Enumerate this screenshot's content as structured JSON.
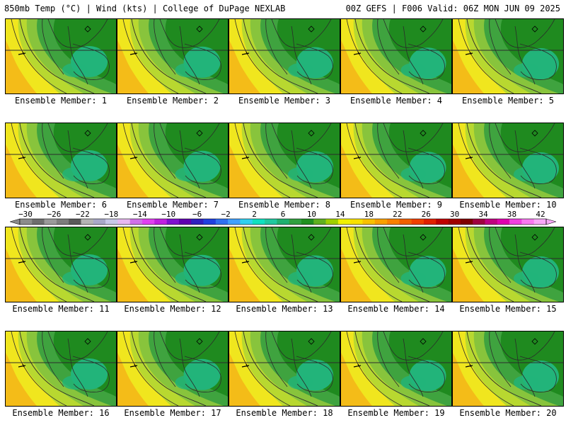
{
  "header": {
    "left": "850mb Temp (°C) | Wind (kts) | College of DuPage NEXLAB",
    "right": "00Z GEFS | F006 Valid: 06Z MON JUN 09 2025"
  },
  "caption_prefix": "Ensemble Member:",
  "members": [
    {
      "label": "Ensemble Member: 1"
    },
    {
      "label": "Ensemble Member: 2"
    },
    {
      "label": "Ensemble Member: 3"
    },
    {
      "label": "Ensemble Member: 4"
    },
    {
      "label": "Ensemble Member: 5"
    },
    {
      "label": "Ensemble Member: 6"
    },
    {
      "label": "Ensemble Member: 7"
    },
    {
      "label": "Ensemble Member: 8"
    },
    {
      "label": "Ensemble Member: 9"
    },
    {
      "label": "Ensemble Member: 10"
    },
    {
      "label": "Ensemble Member: 11"
    },
    {
      "label": "Ensemble Member: 12"
    },
    {
      "label": "Ensemble Member: 13"
    },
    {
      "label": "Ensemble Member: 14"
    },
    {
      "label": "Ensemble Member: 15"
    },
    {
      "label": "Ensemble Member: 16"
    },
    {
      "label": "Ensemble Member: 17"
    },
    {
      "label": "Ensemble Member: 18"
    },
    {
      "label": "Ensemble Member: 19"
    },
    {
      "label": "Ensemble Member: 20"
    }
  ],
  "colorbar": {
    "tick_labels": [
      "−30",
      "−26",
      "−22",
      "−18",
      "−14",
      "−10",
      "−6",
      "−2",
      "2",
      "6",
      "10",
      "14",
      "18",
      "22",
      "26",
      "30",
      "34",
      "38",
      "42"
    ],
    "colors": [
      "#8c8c8c",
      "#6e6e6e",
      "#9a9a9a",
      "#7d7d7d",
      "#5a5a5a",
      "#b4b4b4",
      "#a8a8c8",
      "#c8c8e8",
      "#e8b8f0",
      "#d070e8",
      "#e040f0",
      "#c020e0",
      "#8010d0",
      "#6000b0",
      "#3020c0",
      "#2040e0",
      "#3070f0",
      "#40a0ff",
      "#30d0f0",
      "#10e0c0",
      "#20c8a0",
      "#20b070",
      "#30a040",
      "#209020",
      "#60b020",
      "#a0d000",
      "#f0f000",
      "#f8e000",
      "#f8c000",
      "#f8a000",
      "#f88000",
      "#f06000",
      "#f04000",
      "#e02000",
      "#c00000",
      "#a00000",
      "#800000",
      "#a00040",
      "#c00080",
      "#e000b0",
      "#f040e0",
      "#f878f0",
      "#f8a8f8"
    ]
  },
  "palette": {
    "dark_green": "#1f8a1f",
    "green": "#3fa33f",
    "light_green": "#88c43c",
    "yellow_green": "#b8d830",
    "yellow": "#f0e61e",
    "orange": "#f5b417",
    "teal": "#22b47a",
    "contour": "#2b2b2b",
    "border": "#000000"
  }
}
